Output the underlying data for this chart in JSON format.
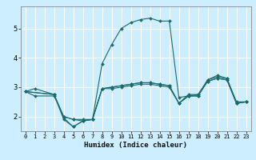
{
  "xlabel": "Humidex (Indice chaleur)",
  "bg_color": "#cceeff",
  "line_color": "#1a6b6b",
  "grid_color": "#ffffff",
  "xlim": [
    -0.5,
    23.5
  ],
  "ylim": [
    1.5,
    5.75
  ],
  "yticks": [
    2,
    3,
    4,
    5
  ],
  "xticks": [
    0,
    1,
    2,
    3,
    4,
    5,
    6,
    7,
    8,
    9,
    10,
    11,
    12,
    13,
    14,
    15,
    16,
    17,
    18,
    19,
    20,
    21,
    22,
    23
  ],
  "series": [
    {
      "x": [
        0,
        1,
        3,
        4,
        5,
        6,
        7,
        8,
        9,
        10,
        11,
        12,
        13,
        14,
        15,
        16,
        17,
        18,
        19,
        20,
        21,
        22,
        23
      ],
      "y": [
        2.85,
        2.95,
        2.75,
        1.9,
        1.65,
        1.85,
        1.9,
        3.8,
        4.45,
        5.0,
        5.2,
        5.3,
        5.35,
        5.25,
        5.25,
        2.65,
        2.7,
        2.7,
        3.25,
        3.4,
        3.3,
        2.45,
        2.5
      ]
    },
    {
      "x": [
        0,
        1,
        3,
        4,
        5,
        6,
        7,
        8,
        9,
        10,
        11,
        12,
        13,
        14,
        15,
        16,
        17,
        18,
        19,
        20,
        21,
        22,
        23
      ],
      "y": [
        2.85,
        2.7,
        2.7,
        2.0,
        1.9,
        1.85,
        1.9,
        2.95,
        3.0,
        3.05,
        3.1,
        3.15,
        3.15,
        3.1,
        3.05,
        2.45,
        2.7,
        2.7,
        3.2,
        3.3,
        3.25,
        2.45,
        2.5
      ]
    },
    {
      "x": [
        0,
        3,
        4,
        5,
        6,
        7,
        8,
        9,
        10,
        11,
        12,
        13,
        14,
        15,
        16,
        17,
        18,
        19,
        20,
        21,
        22,
        23
      ],
      "y": [
        2.85,
        2.75,
        2.0,
        1.9,
        1.9,
        1.9,
        2.95,
        3.0,
        3.05,
        3.1,
        3.15,
        3.15,
        3.1,
        3.05,
        2.45,
        2.75,
        2.75,
        3.25,
        3.35,
        3.3,
        2.5,
        2.5
      ]
    },
    {
      "x": [
        0,
        3,
        4,
        5,
        6,
        7,
        8,
        9,
        10,
        11,
        12,
        13,
        14,
        15,
        16,
        17,
        18,
        19,
        20,
        21,
        22,
        23
      ],
      "y": [
        2.85,
        2.75,
        1.95,
        1.65,
        1.85,
        1.9,
        2.95,
        2.95,
        3.0,
        3.05,
        3.1,
        3.1,
        3.05,
        3.0,
        2.45,
        2.7,
        2.75,
        3.2,
        3.3,
        3.25,
        2.45,
        2.5
      ]
    }
  ]
}
